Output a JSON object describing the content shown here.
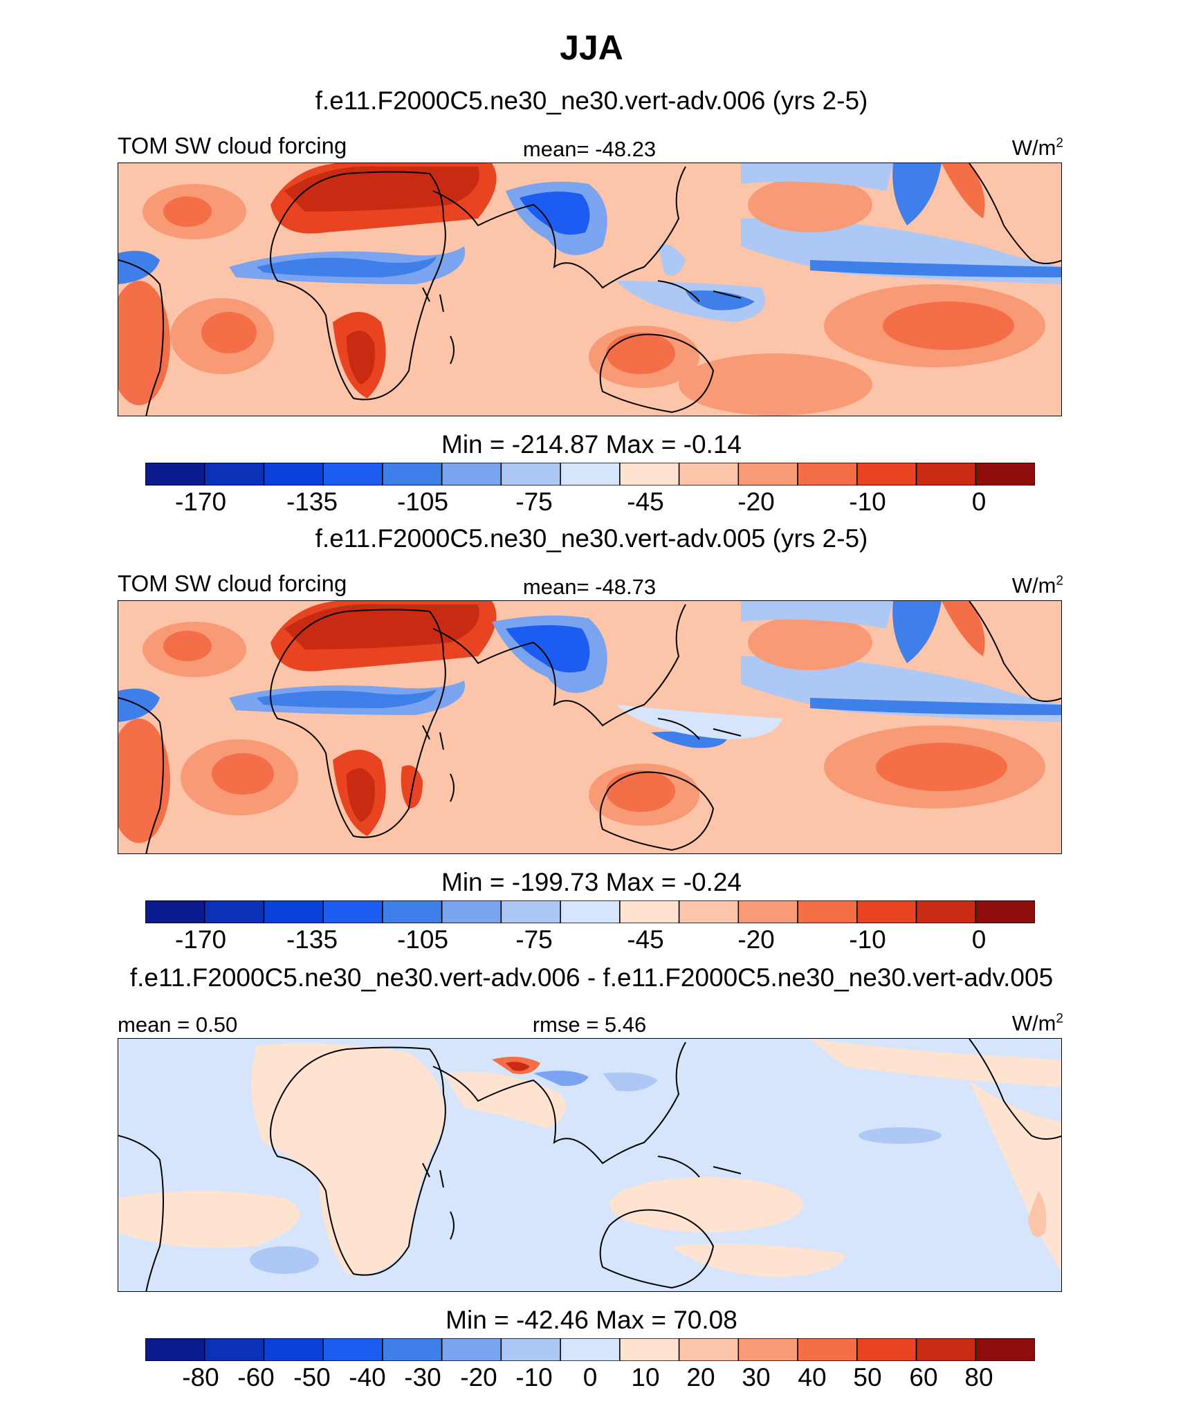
{
  "title": "JJA",
  "panels": [
    {
      "case": "f.e11.F2000C5.ne30_ne30.vert-adv.006 (yrs 2-5)",
      "left_label": "TOM SW cloud forcing",
      "center_label": "mean= -48.23",
      "units": "W/m",
      "units_sup": "2",
      "minmax": "Min = -214.87 Max =  -0.14",
      "colorbar_ticks": [
        "-170",
        "-135",
        "-105",
        "-75",
        "-45",
        "-20",
        "-10",
        "0"
      ]
    },
    {
      "case": "f.e11.F2000C5.ne30_ne30.vert-adv.005 (yrs 2-5)",
      "left_label": "TOM SW cloud forcing",
      "center_label": "mean= -48.73",
      "units": "W/m",
      "units_sup": "2",
      "minmax": "Min = -199.73 Max =  -0.24",
      "colorbar_ticks": [
        "-170",
        "-135",
        "-105",
        "-75",
        "-45",
        "-20",
        "-10",
        "0"
      ]
    },
    {
      "case": "f.e11.F2000C5.ne30_ne30.vert-adv.006 - f.e11.F2000C5.ne30_ne30.vert-adv.005",
      "left_label": "mean =   0.50",
      "center_label": "rmse =   5.46",
      "units": "W/m",
      "units_sup": "2",
      "minmax": "Min = -42.46 Max =  70.08",
      "colorbar_ticks": [
        "-80",
        "-60",
        "-50",
        "-40",
        "-30",
        "-20",
        "-10",
        "0",
        "10",
        "20",
        "30",
        "40",
        "50",
        "60",
        "80"
      ]
    }
  ],
  "colors": {
    "palette": [
      "#0a1a8f",
      "#0b31b8",
      "#0a43dc",
      "#1c5cf0",
      "#3f7fea",
      "#7ba4f0",
      "#aec8f6",
      "#d6e5fb",
      "#fde3d0",
      "#fcc4a8",
      "#f99a76",
      "#f46e48",
      "#e84422",
      "#c92a12",
      "#8e0c0a"
    ],
    "coast": "#000000"
  },
  "chart_data": [
    {
      "type": "heatmap",
      "title": "JJA",
      "subtitle": "f.e11.F2000C5.ne30_ne30.vert-adv.006 (yrs 2-5)",
      "variable": "TOM SW cloud forcing",
      "units": "W/m2",
      "mean": -48.23,
      "min": -214.87,
      "max": -0.14,
      "contour_levels": [
        -170,
        -135,
        -105,
        -75,
        -45,
        -20,
        -10,
        0
      ],
      "colorbar_labels": [
        "-170",
        "-135",
        "-105",
        "-75",
        "-45",
        "-20",
        "-10",
        "0"
      ]
    },
    {
      "type": "heatmap",
      "subtitle": "f.e11.F2000C5.ne30_ne30.vert-adv.005 (yrs 2-5)",
      "variable": "TOM SW cloud forcing",
      "units": "W/m2",
      "mean": -48.73,
      "min": -199.73,
      "max": -0.24,
      "contour_levels": [
        -170,
        -135,
        -105,
        -75,
        -45,
        -20,
        -10,
        0
      ],
      "colorbar_labels": [
        "-170",
        "-135",
        "-105",
        "-75",
        "-45",
        "-20",
        "-10",
        "0"
      ]
    },
    {
      "type": "heatmap",
      "subtitle": "f.e11.F2000C5.ne30_ne30.vert-adv.006 - f.e11.F2000C5.ne30_ne30.vert-adv.005",
      "units": "W/m2",
      "mean": 0.5,
      "rmse": 5.46,
      "min": -42.46,
      "max": 70.08,
      "contour_levels": [
        -80,
        -60,
        -50,
        -40,
        -30,
        -20,
        -10,
        0,
        10,
        20,
        30,
        40,
        50,
        60,
        80
      ],
      "colorbar_labels": [
        "-80",
        "-60",
        "-50",
        "-40",
        "-30",
        "-20",
        "-10",
        "0",
        "10",
        "20",
        "30",
        "40",
        "50",
        "60",
        "80"
      ]
    }
  ]
}
